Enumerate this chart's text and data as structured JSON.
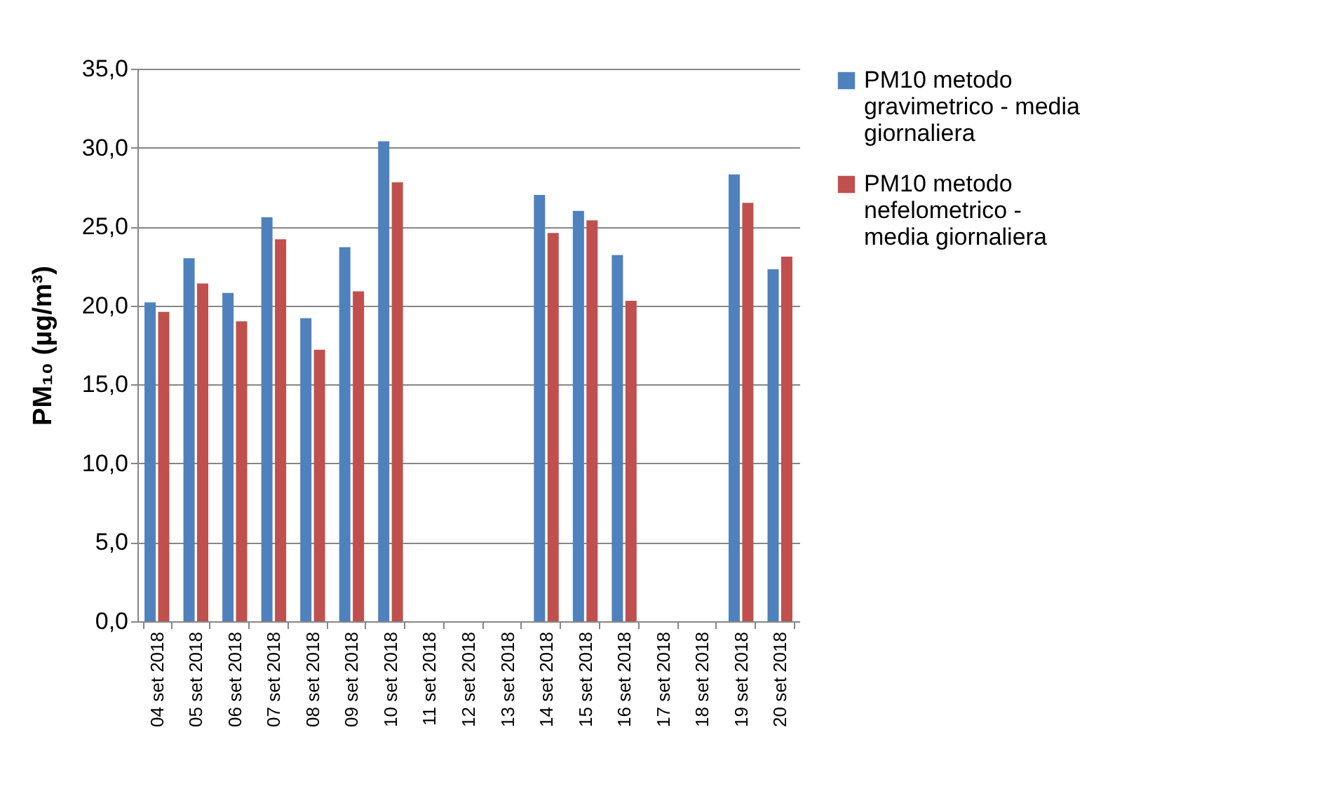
{
  "chart_data": {
    "type": "bar",
    "ylabel": "PM₁₀ (µg/m³)",
    "categories": [
      "04 set 2018",
      "05 set 2018",
      "06 set 2018",
      "07 set 2018",
      "08 set 2018",
      "09 set 2018",
      "10 set 2018",
      "11 set 2018",
      "12 set 2018",
      "13 set 2018",
      "14 set 2018",
      "15 set 2018",
      "16 set 2018",
      "17 set 2018",
      "18 set 2018",
      "19 set 2018",
      "20 set 2018"
    ],
    "series": [
      {
        "name": "PM10 metodo gravimetrico - media giornaliera",
        "color": "#4f81bd",
        "values": [
          20.2,
          23.0,
          20.8,
          25.6,
          19.2,
          23.7,
          30.4,
          null,
          null,
          null,
          27.0,
          26.0,
          23.2,
          null,
          null,
          28.3,
          22.3
        ]
      },
      {
        "name": "PM10 metodo nefelometrico - media giornaliera",
        "color": "#c0504d",
        "values": [
          19.6,
          21.4,
          19.0,
          24.2,
          17.2,
          20.9,
          27.8,
          null,
          null,
          null,
          24.6,
          25.4,
          20.3,
          null,
          null,
          26.5,
          23.1
        ]
      }
    ],
    "ylim": [
      0,
      35
    ],
    "yticks": [
      {
        "value": 0,
        "label": "0,0"
      },
      {
        "value": 5,
        "label": "5,0"
      },
      {
        "value": 10,
        "label": "10,0"
      },
      {
        "value": 15,
        "label": "15,0"
      },
      {
        "value": 20,
        "label": "20,0"
      },
      {
        "value": 25,
        "label": "25,0"
      },
      {
        "value": 30,
        "label": "30,0"
      },
      {
        "value": 35,
        "label": "35,0"
      }
    ],
    "grid": "y",
    "legend": "right"
  }
}
